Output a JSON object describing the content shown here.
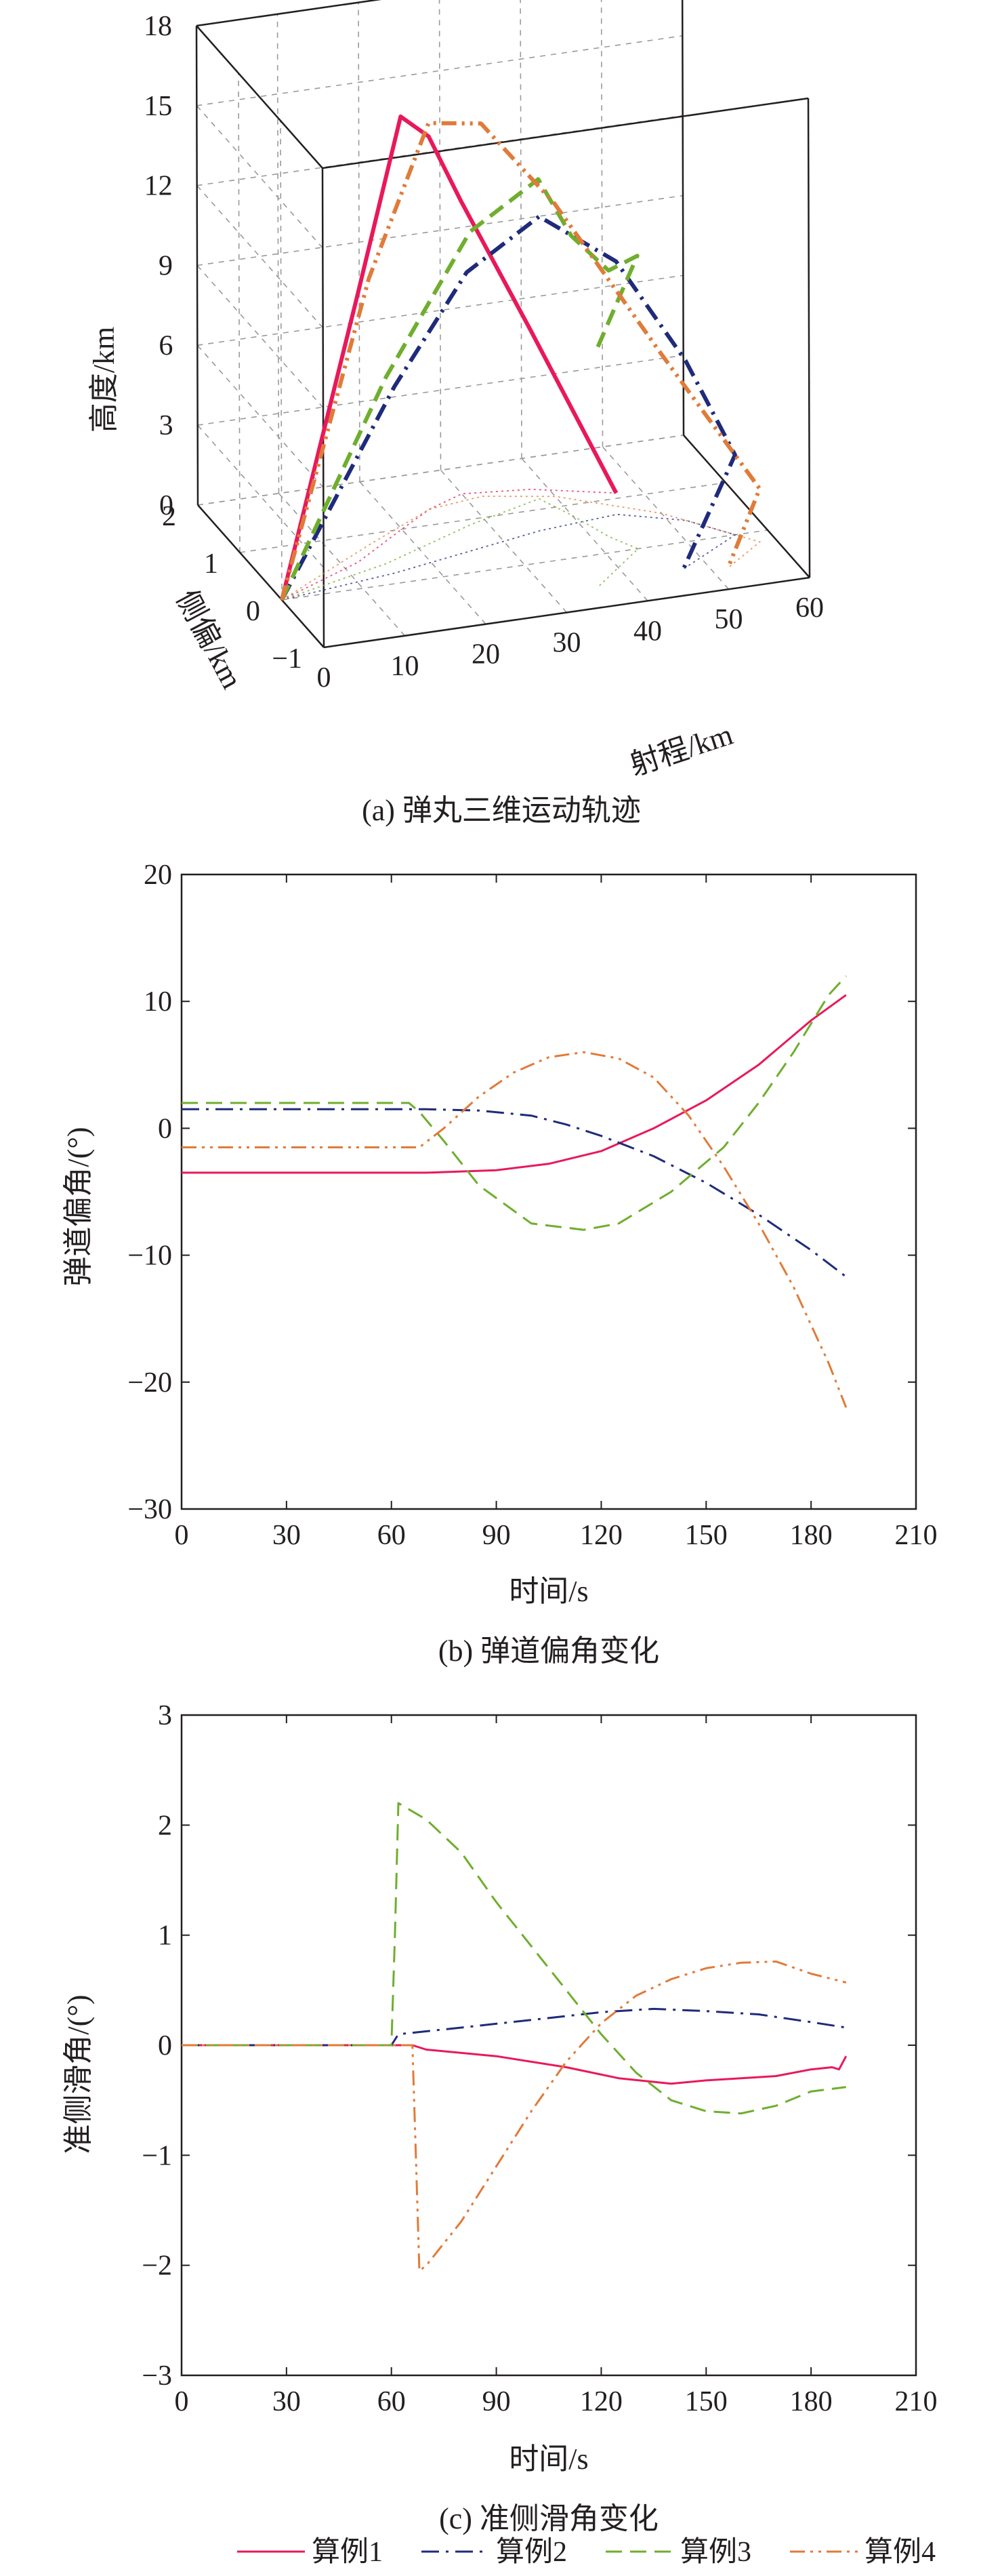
{
  "colors": {
    "case1": "#e8195a",
    "case2": "#1f2b7a",
    "case3": "#6fae2e",
    "case4": "#e07b39",
    "axis": "#231f20",
    "grid": "#9a9a9a"
  },
  "legend": [
    {
      "label": "算例1",
      "color": "#e8195a",
      "dash": "solid"
    },
    {
      "label": "算例2",
      "color": "#1f2b7a",
      "dash": "dashdot"
    },
    {
      "label": "算例3",
      "color": "#6fae2e",
      "dash": "dashed"
    },
    {
      "label": "算例4",
      "color": "#e07b39",
      "dash": "dashdotdot"
    }
  ],
  "chart_data": [
    {
      "type": "line",
      "caption": "(a) 弹丸三维运动轨迹",
      "xlabel": "射程/km",
      "ylabel": "侧偏/km",
      "zlabel": "高度/km",
      "x_ticks": [
        "0",
        "10",
        "20",
        "30",
        "40",
        "50",
        "60"
      ],
      "y_ticks": [
        "−1",
        "0",
        "1",
        "2"
      ],
      "z_ticks": [
        "0",
        "3",
        "6",
        "9",
        "12",
        "15",
        "18"
      ],
      "xlim": [
        0,
        60
      ],
      "ylim": [
        -1,
        2
      ],
      "zlim": [
        0,
        18
      ],
      "grid": true,
      "series": [
        {
          "name": "算例1",
          "range": [
            0,
            12,
            20,
            25,
            30,
            38,
            47
          ],
          "cross": [
            0,
            0.5,
            1.0,
            1.3,
            1.5,
            1.4,
            1.1
          ],
          "height": [
            0,
            10,
            15.5,
            14,
            11,
            6,
            0
          ]
        },
        {
          "name": "算例2",
          "range": [
            0,
            15,
            25,
            35,
            45,
            52,
            56,
            47
          ],
          "cross": [
            0,
            0.2,
            0.4,
            0.6,
            0.7,
            0.4,
            0.0,
            -0.5
          ],
          "height": [
            0,
            7,
            10.5,
            11.8,
            9.5,
            6,
            3,
            0
          ]
        },
        {
          "name": "算例3",
          "range": [
            0,
            15,
            28,
            38,
            40,
            42,
            44,
            36
          ],
          "cross": [
            0,
            0.4,
            0.9,
            1.2,
            0.8,
            0.3,
            0.0,
            -0.6
          ],
          "height": [
            0,
            7,
            11,
            12,
            10.5,
            10,
            11,
            9
          ]
        },
        {
          "name": "算例4",
          "range": [
            0,
            15,
            25,
            32,
            40,
            50,
            58,
            52
          ],
          "cross": [
            0,
            0.8,
            1.3,
            1.4,
            1.2,
            0.6,
            -0.2,
            -0.6
          ],
          "height": [
            0,
            10,
            14.5,
            14,
            11,
            6,
            2,
            0
          ]
        }
      ]
    },
    {
      "type": "line",
      "caption": "(b) 弹道偏角变化",
      "xlabel": "时间/s",
      "ylabel": "弹道偏角/(°)",
      "xlim": [
        0,
        210
      ],
      "ylim": [
        -30,
        20
      ],
      "x_ticks": [
        0,
        30,
        60,
        90,
        120,
        150,
        180,
        210
      ],
      "y_ticks": [
        -30,
        -20,
        -10,
        0,
        10,
        20
      ],
      "grid": false,
      "series": [
        {
          "name": "算例1",
          "x": [
            0,
            60,
            70,
            90,
            105,
            120,
            135,
            150,
            165,
            180,
            190
          ],
          "y": [
            -3.5,
            -3.5,
            -3.5,
            -3.3,
            -2.8,
            -1.8,
            0.0,
            2.2,
            5.0,
            8.5,
            10.5
          ]
        },
        {
          "name": "算例2",
          "x": [
            0,
            60,
            70,
            85,
            100,
            110,
            120,
            135,
            150,
            165,
            180,
            190
          ],
          "y": [
            1.5,
            1.5,
            1.5,
            1.4,
            1.0,
            0.3,
            -0.6,
            -2.2,
            -4.3,
            -6.8,
            -9.6,
            -11.7
          ]
        },
        {
          "name": "算例3",
          "x": [
            0,
            65,
            68,
            75,
            85,
            100,
            115,
            125,
            140,
            155,
            165,
            175,
            185,
            190
          ],
          "y": [
            2.0,
            2.0,
            1.3,
            -1.0,
            -4.5,
            -7.5,
            -8.0,
            -7.5,
            -5.0,
            -1.5,
            2.0,
            6.0,
            10.5,
            12.0
          ]
        },
        {
          "name": "算例4",
          "x": [
            0,
            60,
            68,
            75,
            85,
            95,
            105,
            115,
            125,
            135,
            145,
            155,
            165,
            175,
            185,
            190
          ],
          "y": [
            -1.5,
            -1.5,
            -1.5,
            0.0,
            2.5,
            4.4,
            5.6,
            6.0,
            5.5,
            4.0,
            1.0,
            -3.0,
            -7.5,
            -12.5,
            -18.5,
            -22.0
          ]
        }
      ]
    },
    {
      "type": "line",
      "caption": "(c) 准侧滑角变化",
      "xlabel": "时间/s",
      "ylabel": "准侧滑角/(°)",
      "xlim": [
        0,
        210
      ],
      "ylim": [
        -3,
        3
      ],
      "x_ticks": [
        0,
        30,
        60,
        90,
        120,
        150,
        180,
        210
      ],
      "y_ticks": [
        -3,
        -2,
        -1,
        0,
        1,
        2,
        3
      ],
      "grid": false,
      "series": [
        {
          "name": "算例1",
          "x": [
            0,
            60,
            66,
            70,
            90,
            110,
            125,
            140,
            150,
            160,
            170,
            180,
            186,
            188,
            190
          ],
          "y": [
            0,
            0,
            0,
            -0.04,
            -0.1,
            -0.2,
            -0.3,
            -0.35,
            -0.32,
            -0.3,
            -0.28,
            -0.22,
            -0.2,
            -0.22,
            -0.1
          ]
        },
        {
          "name": "算例2",
          "x": [
            0,
            60,
            62,
            80,
            100,
            120,
            135,
            150,
            165,
            180,
            190
          ],
          "y": [
            0,
            0,
            0.1,
            0.16,
            0.23,
            0.3,
            0.33,
            0.31,
            0.28,
            0.21,
            0.16
          ]
        },
        {
          "name": "算例3",
          "x": [
            0,
            60,
            61,
            62,
            70,
            80,
            90,
            100,
            110,
            120,
            130,
            140,
            150,
            160,
            170,
            180,
            190
          ],
          "y": [
            0,
            0,
            1.0,
            2.2,
            2.05,
            1.75,
            1.3,
            0.9,
            0.5,
            0.1,
            -0.25,
            -0.5,
            -0.6,
            -0.62,
            -0.55,
            -0.42,
            -0.38
          ]
        },
        {
          "name": "算例4",
          "x": [
            0,
            60,
            66,
            67,
            68,
            70,
            80,
            90,
            100,
            110,
            120,
            130,
            140,
            150,
            160,
            170,
            180,
            190
          ],
          "y": [
            0,
            0,
            0,
            -1.0,
            -2.05,
            -2.0,
            -1.6,
            -1.1,
            -0.6,
            -0.15,
            0.2,
            0.45,
            0.6,
            0.7,
            0.75,
            0.76,
            0.65,
            0.57
          ]
        }
      ]
    }
  ]
}
